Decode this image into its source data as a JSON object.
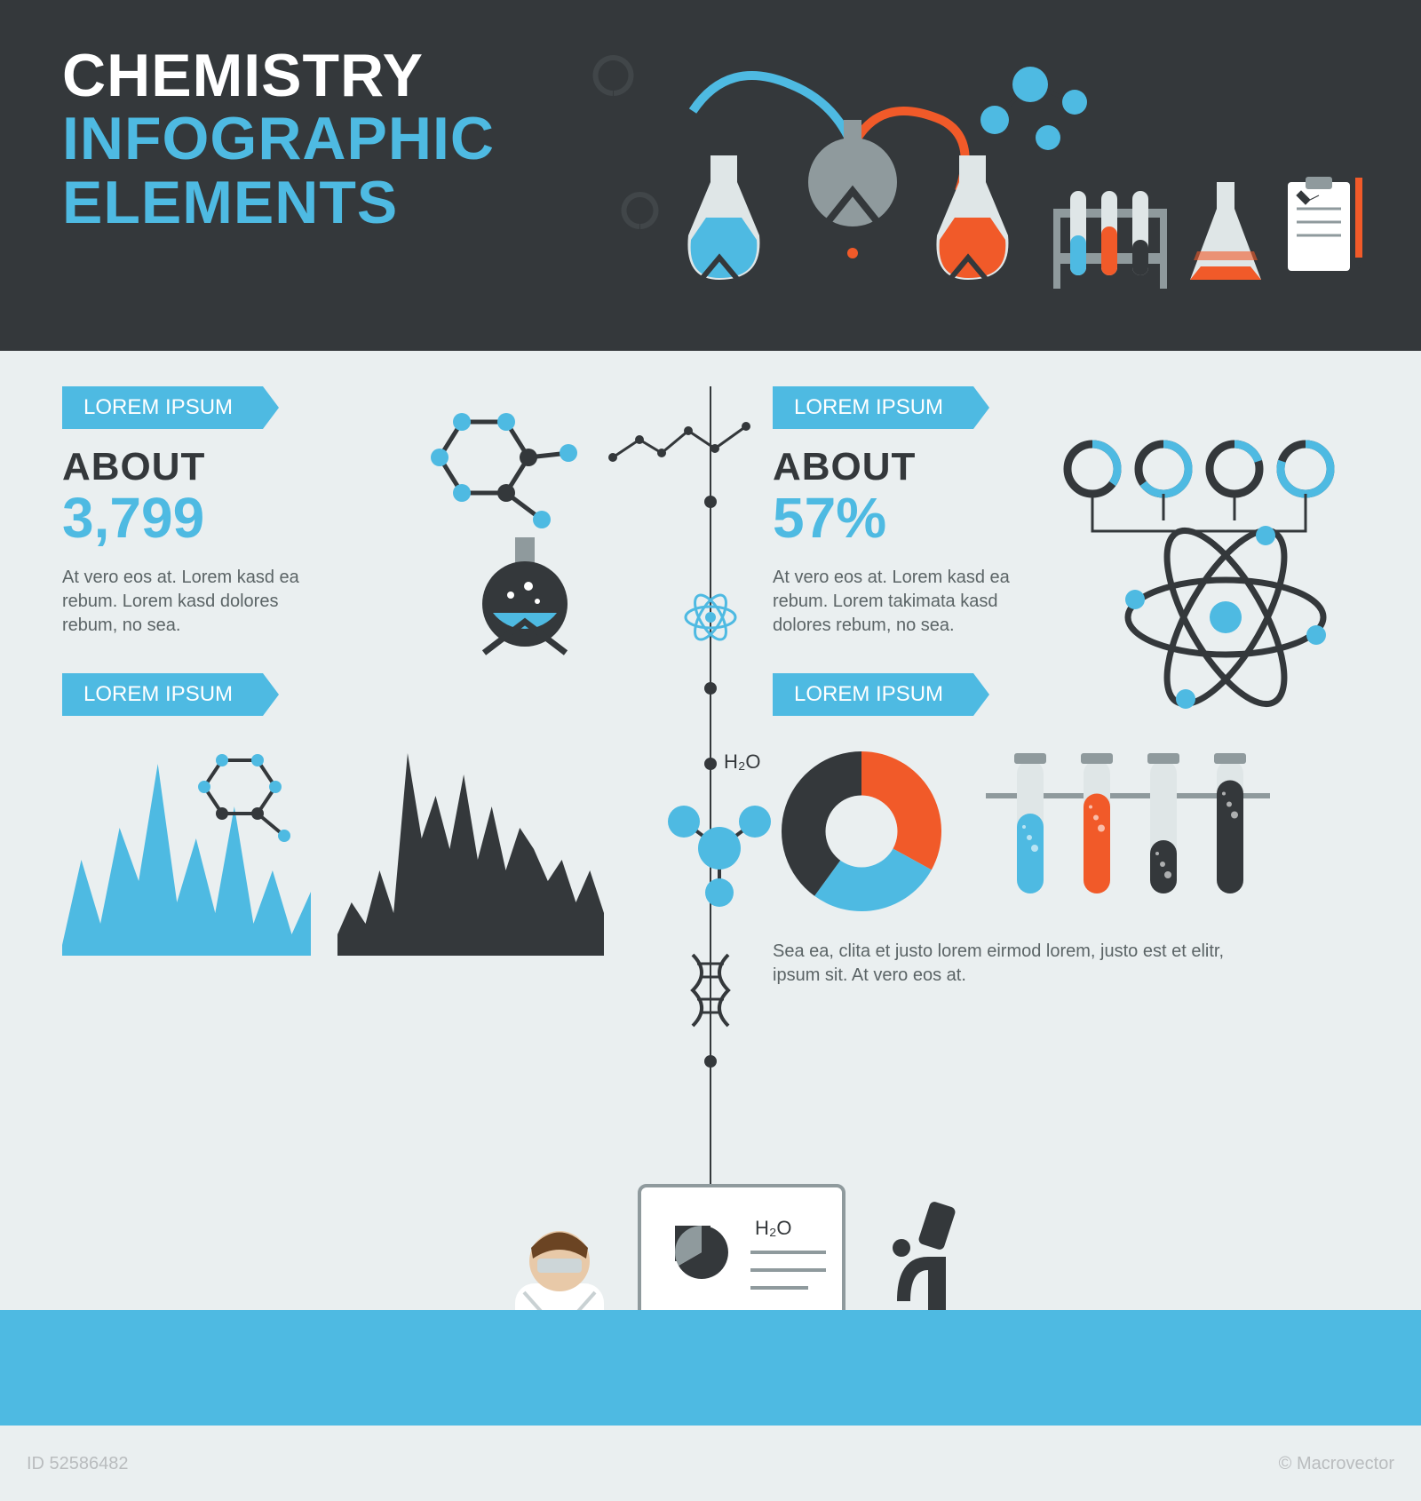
{
  "colors": {
    "bg_dark": "#34383b",
    "bg_light": "#eaeff0",
    "accent": "#4ebae2",
    "orange": "#f15a29",
    "text_dark": "#34383b",
    "text_muted": "#5b6466",
    "white": "#ffffff",
    "grey": "#8f9a9d"
  },
  "header": {
    "title_line1": "CHEMISTRY",
    "title_line2": "INFOGRAPHIC",
    "title_line3": "ELEMENTS",
    "line1_color": "#ffffff",
    "line2_color": "#4ebae2",
    "line3_color": "#4ebae2",
    "title_fontsize": 68
  },
  "sections": {
    "s1": {
      "ribbon": "LOREM IPSUM",
      "about_label": "ABOUT",
      "value": "3,799",
      "value_color": "#4ebae2",
      "lorem": "At vero eos at. Lorem kasd ea rebum. Lorem kasd dolores rebum, no sea."
    },
    "s2": {
      "ribbon": "LOREM IPSUM",
      "about_label": "ABOUT",
      "value": "57%",
      "value_color": "#4ebae2",
      "lorem": "At vero eos at. Lorem kasd ea rebum. Lorem takimata kasd dolores rebum, no sea.",
      "rings": [
        {
          "pct": 35,
          "color": "#4ebae2"
        },
        {
          "pct": 65,
          "color": "#4ebae2"
        },
        {
          "pct": 20,
          "color": "#4ebae2"
        },
        {
          "pct": 80,
          "color": "#4ebae2"
        }
      ]
    },
    "s3": {
      "ribbon": "LOREM IPSUM",
      "area_chart_1": {
        "type": "area",
        "values": [
          5,
          45,
          15,
          60,
          35,
          90,
          25,
          55,
          20,
          70,
          15,
          40,
          10,
          30
        ],
        "color": "#4ebae2",
        "background": "#eaeff0",
        "ylim": [
          0,
          100
        ]
      },
      "area_chart_2": {
        "type": "area",
        "values": [
          10,
          25,
          15,
          40,
          20,
          95,
          55,
          75,
          50,
          85,
          45,
          70,
          40,
          60,
          50,
          35,
          45,
          25,
          40,
          20
        ],
        "color": "#34383b",
        "background": "#eaeff0",
        "ylim": [
          0,
          100
        ]
      }
    },
    "s4": {
      "ribbon": "LOREM IPSUM",
      "lorem": "Sea ea, clita et justo lorem eirmod lorem, justo est et elitr, ipsum sit. At vero eos at.",
      "donut": {
        "type": "pie",
        "slices": [
          {
            "value": 33,
            "color": "#f15a29"
          },
          {
            "value": 27,
            "color": "#4ebae2"
          },
          {
            "value": 40,
            "color": "#34383b"
          }
        ],
        "inner_radius_pct": 45
      },
      "tubes": [
        {
          "fill_pct": 60,
          "color": "#4ebae2"
        },
        {
          "fill_pct": 75,
          "color": "#f15a29"
        },
        {
          "fill_pct": 40,
          "color": "#34383b"
        },
        {
          "fill_pct": 85,
          "color": "#34383b"
        }
      ]
    }
  },
  "timeline": {
    "icons": [
      "line-chart",
      "atom-small",
      "h2o-label",
      "dna",
      "computer"
    ],
    "h2o_label": "H₂O"
  },
  "footer": {
    "h2o_label": "H₂O",
    "bar_color": "#4ebae2"
  },
  "watermark": {
    "id_label": "ID 52586482",
    "credit": "© Macrovector"
  }
}
